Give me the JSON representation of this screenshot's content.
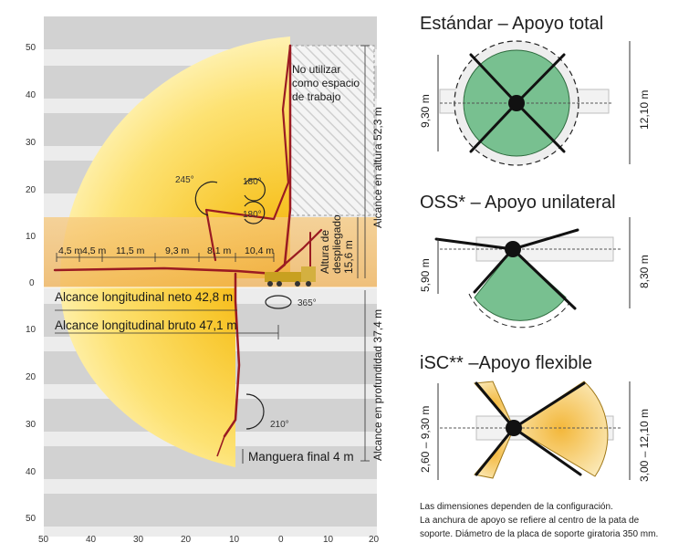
{
  "range_chart": {
    "y_ticks_above": [
      "50",
      "40",
      "30",
      "20",
      "10"
    ],
    "y_zero": "0",
    "y_ticks_below": [
      "10",
      "20",
      "30",
      "40",
      "50"
    ],
    "x_ticks": [
      "50",
      "40",
      "30",
      "20",
      "10",
      "0",
      "10",
      "20"
    ],
    "segments": [
      "4,5 m",
      "4,5 m",
      "11,5 m",
      "9,3 m",
      "8,1 m",
      "10,4 m"
    ],
    "no_use_label": [
      "No utilizar",
      "como espacio",
      "de trabajo"
    ],
    "height_reach": "Alcance en altura 52,3 m",
    "depth_reach": "Alcance en profundidad 37,4 m",
    "unfold_height": [
      "Altura de",
      "despliegado",
      "15,6 m"
    ],
    "net_reach": "Alcance longitudinal neto 42,8 m",
    "gross_reach": "Alcance longitudinal bruto 47,1 m",
    "end_hose": "Manguera final 4 m",
    "angles": {
      "a245": "245°",
      "a180a": "180°",
      "a180b": "180°",
      "a365": "365°",
      "a210": "210°"
    },
    "colors": {
      "band_dark": "#d2d2d2",
      "band_light": "#ececec",
      "yellow_edge": "#fff0a0",
      "yellow_core": "#f5a800",
      "boom": "#9a1b22",
      "truck": "#c8a020"
    }
  },
  "panels": [
    {
      "title": "Estándar – Apoyo total",
      "left_dim": "9,30 m",
      "right_dim": "12,10 m"
    },
    {
      "title": "OSS* – Apoyo unilateral",
      "left_dim": "5,90 m",
      "right_dim": "8,30 m"
    },
    {
      "title": "iSC** –Apoyo flexible",
      "left_dim": "2,60 – 9,30 m",
      "right_dim": "3,00 – 12,10 m"
    }
  ],
  "footnote": [
    "Las dimensiones dependen de la configuración.",
    "La anchura de apoyo se refiere al centro de la pata de",
    "soporte. Diámetro de la placa de soporte giratoria 350 mm."
  ]
}
